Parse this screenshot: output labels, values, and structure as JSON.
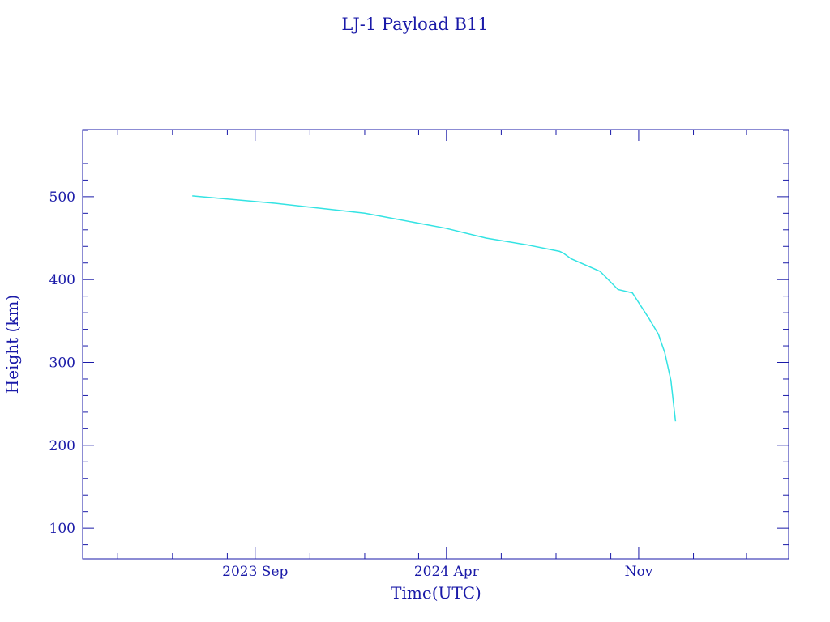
{
  "chart_data": {
    "type": "line",
    "title": "LJ-1 Payload B11",
    "xlabel": "Time(UTC)",
    "ylabel": "Height (km)",
    "xlim": [
      "2023-02-21",
      "2025-04-17"
    ],
    "ylim": [
      63,
      581
    ],
    "x_ticks": [
      {
        "date": "2023-09-01",
        "label": "2023 Sep"
      },
      {
        "date": "2024-04-01",
        "label": "2024 Apr"
      },
      {
        "date": "2024-11-01",
        "label": "Nov"
      }
    ],
    "x_minor_ticks": [
      "2023-04-01",
      "2023-06-01",
      "2023-08-01",
      "2023-11-01",
      "2024-01-01",
      "2024-03-01",
      "2024-06-01",
      "2024-08-01",
      "2024-10-01",
      "2025-01-01",
      "2025-03-01"
    ],
    "y_ticks": [
      100,
      200,
      300,
      400,
      500
    ],
    "y_minor_step": 20,
    "grid": false,
    "colors": {
      "axis": "#1a1aa8",
      "line": "#33e3e3"
    },
    "series": [
      {
        "x": [
          "2023-06-23",
          "2023-09-24",
          "2024-01-01",
          "2024-03-31",
          "2024-05-15",
          "2024-06-29",
          "2024-08-05",
          "2024-08-09",
          "2024-08-18",
          "2024-09-19",
          "2024-10-09",
          "2024-10-25",
          "2024-11-12",
          "2024-11-23",
          "2024-11-30",
          "2024-12-07",
          "2024-12-12"
        ],
        "y": [
          501,
          492,
          480,
          462,
          450,
          442,
          434,
          432,
          425,
          410,
          388,
          384,
          354,
          334,
          312,
          278,
          229
        ]
      }
    ]
  }
}
